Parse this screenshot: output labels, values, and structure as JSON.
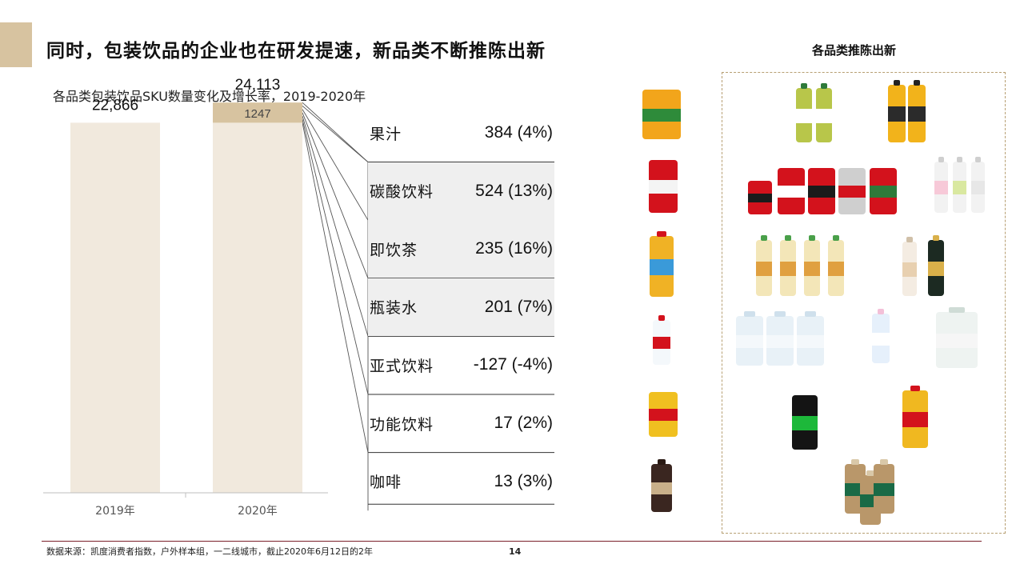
{
  "slide": {
    "title": "同时，包装饮品的企业也在研发提速，新品类不断推陈出新",
    "right_title": "各品类推陈出新",
    "source": "数据来源：凯度消费者指数，户外样本组，一二线城市，截止2020年6月12日的2年",
    "page_number": "14"
  },
  "chart_data": {
    "type": "bar",
    "title": "各品类包装饮品SKU数量变化及增长率，2019-2020年",
    "categories": [
      "2019年",
      "2020年"
    ],
    "totals": [
      22866,
      24113
    ],
    "total_labels": [
      "22,866",
      "24,113"
    ],
    "increment": {
      "value": 1247,
      "label": "1247"
    },
    "ylim": [
      0,
      26000
    ],
    "colors": {
      "base": "#f1e9dd",
      "increment": "#d7c3a0",
      "axis": "#bfbfbf"
    },
    "breakdown": [
      {
        "name": "果汁",
        "value": "384 (4%)"
      },
      {
        "name": "碳酸饮料",
        "value": "524 (13%)"
      },
      {
        "name": "即饮茶",
        "value": "235 (16%)"
      },
      {
        "name": "瓶装水",
        "value": "201 (7%)"
      },
      {
        "name": "亚式饮料",
        "value": "-127 (-4%)"
      },
      {
        "name": "功能饮料",
        "value": "17 (2%)"
      },
      {
        "name": "咖啡",
        "value": "13 (3%)"
      }
    ]
  }
}
